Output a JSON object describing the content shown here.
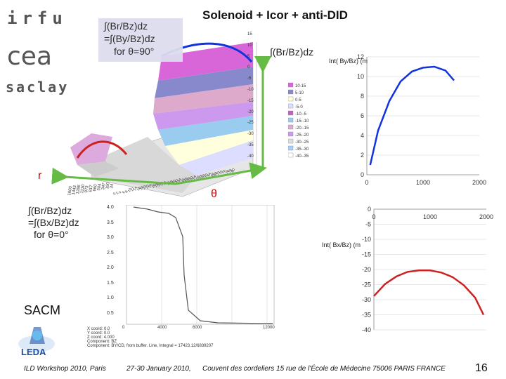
{
  "slide": {
    "title": "Solenoid + Icor + anti-DID",
    "page_number": "16"
  },
  "logos": {
    "irfu": "irfu",
    "cea": "cea",
    "saclay": "saclay",
    "sacm": "SACM",
    "leda": "LEDA"
  },
  "annotations": {
    "callout_line1": "∫(Br/Bz)dz",
    "callout_line2": "=∫(By/Bz)dz",
    "callout_line3": "for θ=90°",
    "br_integral": "∫(Br/Bz)dz",
    "r_axis": "r",
    "theta_axis": "θ",
    "left_line1": "∫(Br/Bz)dz",
    "left_line2": "=∫(Bx/Bz)dz",
    "left_line3": "for θ=0°"
  },
  "surface_plot": {
    "z_ticks": [
      "15",
      "10",
      "5",
      "0",
      "-5",
      "-10",
      "-15",
      "-20",
      "-25",
      "-30",
      "-35",
      "-40"
    ],
    "r_ticks": [
      "1600",
      "1443",
      "1286",
      "1130",
      "973",
      "817",
      "660",
      "504",
      "347",
      "190",
      "34"
    ],
    "theta_ticks": [
      "0",
      "2",
      "4",
      "6",
      "8",
      "10",
      "12",
      "14",
      "16",
      "18",
      "20",
      "22",
      "24",
      "26",
      "28",
      "30",
      "32",
      "34",
      "36",
      "38",
      "40",
      "42",
      "44",
      "46",
      "48",
      "50",
      "52",
      "54",
      "56",
      "58",
      "60",
      "62",
      "64",
      "66",
      "68",
      "70",
      "72",
      "74",
      "76",
      "78",
      "80"
    ],
    "legend": [
      "10-15",
      "5-10",
      "0-5",
      "-5-0",
      "-10--5",
      "-15--10",
      "-20--15",
      "-25--20",
      "-30--25",
      "-35--30",
      "-40--35"
    ]
  },
  "field_profile": {
    "y_ticks": [
      "4.0",
      "3.5",
      "3.0",
      "2.5",
      "2.0",
      "1.5",
      "1.0",
      "0.5"
    ],
    "x_ticks": [
      "0",
      "4000",
      "6000",
      "12000"
    ],
    "legend_lines": [
      "X coord: 0.0",
      "Y coord: 0.0",
      "Z coord: 4.000",
      "Component: BZ"
    ],
    "caption": "Component: BY/CD, from buffer. Line, Integral = 17423.12/6839207"
  },
  "chart_data": [
    {
      "type": "line",
      "title": "",
      "ylabel": "Int( By/Bz) (m",
      "xlabel": "",
      "x_ticks": [
        "0",
        "1000",
        "2000"
      ],
      "y_ticks": [
        "0",
        "2",
        "4",
        "6",
        "8",
        "10",
        "12"
      ],
      "xlim": [
        0,
        2000
      ],
      "ylim": [
        0,
        12
      ],
      "series": [
        {
          "color": "#1133dd",
          "x": [
            60,
            200,
            400,
            600,
            800,
            1000,
            1200,
            1400,
            1550
          ],
          "y": [
            1.0,
            4.5,
            7.5,
            9.5,
            10.5,
            10.9,
            11.0,
            10.6,
            9.6
          ]
        }
      ]
    },
    {
      "type": "line",
      "title": "",
      "ylabel": "Int( Bx/Bz) (m",
      "xlabel": "",
      "x_ticks": [
        "0",
        "1000",
        "2000"
      ],
      "y_ticks": [
        "0",
        "-5",
        "-10",
        "-15",
        "-20",
        "-25",
        "-30",
        "-35",
        "-40"
      ],
      "xlim": [
        0,
        2000
      ],
      "ylim": [
        -40,
        0
      ],
      "series": [
        {
          "color": "#cc2222",
          "x": [
            0,
            200,
            400,
            600,
            800,
            1000,
            1200,
            1400,
            1600,
            1800,
            1950
          ],
          "y": [
            -28.8,
            -24.8,
            -22.3,
            -20.8,
            -20.3,
            -20.3,
            -21.0,
            -22.5,
            -25.2,
            -29.3,
            -35.0
          ]
        }
      ]
    }
  ],
  "footer": {
    "workshop": "ILD Workshop 2010, Paris",
    "dates": "27-30 January 2010,",
    "venue": "Couvent des cordeliers  15 rue de l'École de Médecine 75006 PARIS FRANCE"
  },
  "colors": {
    "blue_series": "#1133dd",
    "red_series": "#cc2222",
    "green_arrow": "#66bb44"
  }
}
